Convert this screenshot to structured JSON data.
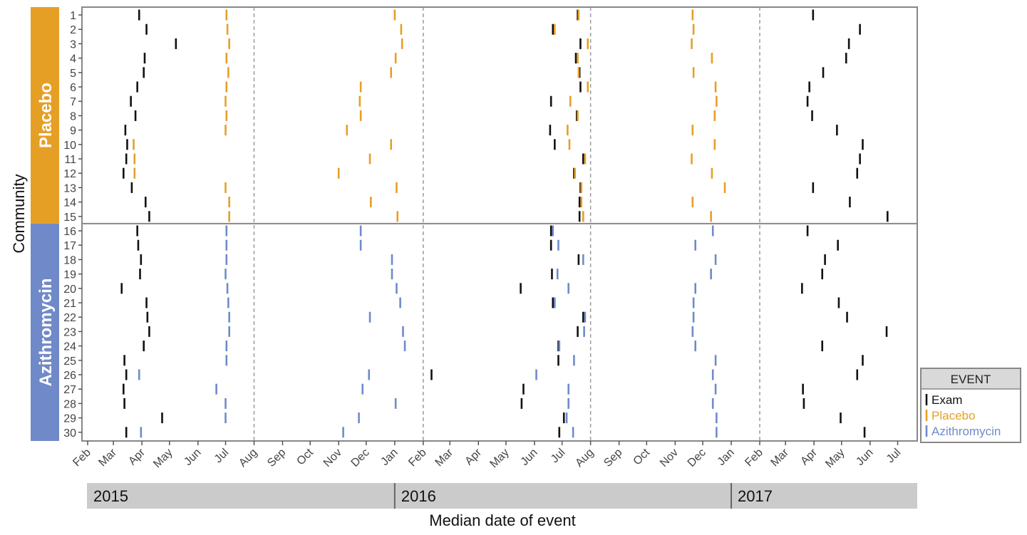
{
  "chart_data": {
    "type": "timeline",
    "xlabel": "Median date of event",
    "ylabel": "Community",
    "x_range": [
      "2015-02-01",
      "2017-07-15"
    ],
    "x_ticks": [
      "Feb",
      "Mar",
      "Apr",
      "May",
      "Jun",
      "Jul",
      "Aug",
      "Sep",
      "Oct",
      "Nov",
      "Dec",
      "Jan",
      "Feb",
      "Mar",
      "Apr",
      "May",
      "Jun",
      "Jul",
      "Aug",
      "Sep",
      "Oct",
      "Nov",
      "Dec",
      "Jan",
      "Feb",
      "Mar",
      "Apr",
      "May",
      "Jun",
      "Jul"
    ],
    "x_tick_dates": [
      "2015-02-01",
      "2015-03-01",
      "2015-04-01",
      "2015-05-01",
      "2015-06-01",
      "2015-07-01",
      "2015-08-01",
      "2015-09-01",
      "2015-10-01",
      "2015-11-01",
      "2015-12-01",
      "2016-01-01",
      "2016-02-01",
      "2016-03-01",
      "2016-04-01",
      "2016-05-01",
      "2016-06-01",
      "2016-07-01",
      "2016-08-01",
      "2016-09-01",
      "2016-10-01",
      "2016-11-01",
      "2016-12-01",
      "2017-01-01",
      "2017-02-01",
      "2017-03-01",
      "2017-04-01",
      "2017-05-01",
      "2017-06-01",
      "2017-07-01"
    ],
    "dashed_lines": [
      "2015-08-01",
      "2016-02-01",
      "2016-08-01",
      "2017-02-01"
    ],
    "years": [
      {
        "label": "2015",
        "start": "2015-02-01",
        "end": "2016-01-01"
      },
      {
        "label": "2016",
        "start": "2016-01-01",
        "end": "2017-01-01"
      },
      {
        "label": "2017",
        "start": "2017-01-01",
        "end": "2017-07-15"
      }
    ],
    "panels": [
      {
        "label": "Placebo",
        "color": "#E69F25",
        "communities": [
          1,
          2,
          3,
          4,
          5,
          6,
          7,
          8,
          9,
          10,
          11,
          12,
          13,
          14,
          15
        ]
      },
      {
        "label": "Azithromycin",
        "color": "#7089C8",
        "communities": [
          16,
          17,
          18,
          19,
          20,
          21,
          22,
          23,
          24,
          25,
          26,
          27,
          28,
          29,
          30
        ]
      }
    ],
    "legend": {
      "title": "EVENT",
      "position": "bottom-right",
      "items": [
        {
          "label": "Exam",
          "color": "#111111"
        },
        {
          "label": "Placebo",
          "color": "#E69F25"
        },
        {
          "label": "Azithromycin",
          "color": "#6E8BC9"
        }
      ]
    },
    "events": [
      {
        "community": 1,
        "type": "Exam",
        "dates": [
          "2015-03-29",
          "2016-07-18",
          "2017-03-31"
        ]
      },
      {
        "community": 1,
        "type": "Placebo",
        "dates": [
          "2015-07-02",
          "2016-01-01",
          "2016-07-19",
          "2016-11-20"
        ]
      },
      {
        "community": 2,
        "type": "Exam",
        "dates": [
          "2015-04-06",
          "2016-06-21",
          "2017-05-21"
        ]
      },
      {
        "community": 2,
        "type": "Placebo",
        "dates": [
          "2015-07-03",
          "2016-01-08",
          "2016-06-23",
          "2016-11-21"
        ]
      },
      {
        "community": 3,
        "type": "Exam",
        "dates": [
          "2015-05-08",
          "2016-07-21",
          "2017-05-09"
        ]
      },
      {
        "community": 3,
        "type": "Placebo",
        "dates": [
          "2015-07-05",
          "2016-01-09",
          "2016-07-29",
          "2016-11-19"
        ]
      },
      {
        "community": 4,
        "type": "Exam",
        "dates": [
          "2015-04-04",
          "2016-07-16",
          "2017-05-06"
        ]
      },
      {
        "community": 4,
        "type": "Placebo",
        "dates": [
          "2015-07-02",
          "2016-01-02",
          "2016-07-18",
          "2016-12-11"
        ]
      },
      {
        "community": 5,
        "type": "Exam",
        "dates": [
          "2015-04-03",
          "2016-07-20",
          "2017-04-11"
        ]
      },
      {
        "community": 5,
        "type": "Placebo",
        "dates": [
          "2015-07-04",
          "2015-12-28",
          "2016-07-19",
          "2016-11-21"
        ]
      },
      {
        "community": 6,
        "type": "Exam",
        "dates": [
          "2015-03-27",
          "2016-07-21",
          "2017-03-27"
        ]
      },
      {
        "community": 6,
        "type": "Placebo",
        "dates": [
          "2015-07-02",
          "2015-11-25",
          "2016-07-29",
          "2016-12-15"
        ]
      },
      {
        "community": 7,
        "type": "Exam",
        "dates": [
          "2015-03-20",
          "2016-06-19",
          "2017-03-25"
        ]
      },
      {
        "community": 7,
        "type": "Placebo",
        "dates": [
          "2015-07-01",
          "2015-11-24",
          "2016-07-10",
          "2016-12-16"
        ]
      },
      {
        "community": 8,
        "type": "Exam",
        "dates": [
          "2015-03-25",
          "2016-07-17",
          "2017-03-30"
        ]
      },
      {
        "community": 8,
        "type": "Placebo",
        "dates": [
          "2015-07-02",
          "2015-11-25",
          "2016-07-18",
          "2016-12-14"
        ]
      },
      {
        "community": 9,
        "type": "Exam",
        "dates": [
          "2015-03-14",
          "2016-06-18",
          "2017-04-26"
        ]
      },
      {
        "community": 9,
        "type": "Placebo",
        "dates": [
          "2015-07-01",
          "2015-11-10",
          "2016-07-07",
          "2016-11-20"
        ]
      },
      {
        "community": 10,
        "type": "Exam",
        "dates": [
          "2015-03-16",
          "2016-06-23",
          "2017-05-24"
        ]
      },
      {
        "community": 10,
        "type": "Placebo",
        "dates": [
          "2015-03-23",
          "2015-12-28",
          "2016-07-09",
          "2016-12-14"
        ]
      },
      {
        "community": 11,
        "type": "Exam",
        "dates": [
          "2015-03-15",
          "2016-07-24",
          "2017-05-21"
        ]
      },
      {
        "community": 11,
        "type": "Placebo",
        "dates": [
          "2015-03-24",
          "2015-12-05",
          "2016-07-26",
          "2016-11-19"
        ]
      },
      {
        "community": 12,
        "type": "Exam",
        "dates": [
          "2015-03-12",
          "2016-07-14",
          "2017-05-18"
        ]
      },
      {
        "community": 12,
        "type": "Placebo",
        "dates": [
          "2015-03-24",
          "2015-11-01",
          "2016-07-15",
          "2016-12-11"
        ]
      },
      {
        "community": 13,
        "type": "Exam",
        "dates": [
          "2015-03-21",
          "2016-07-21",
          "2017-03-31"
        ]
      },
      {
        "community": 13,
        "type": "Placebo",
        "dates": [
          "2015-07-01",
          "2016-01-03",
          "2016-07-22",
          "2016-12-25"
        ]
      },
      {
        "community": 14,
        "type": "Exam",
        "dates": [
          "2015-04-05",
          "2016-07-20",
          "2017-05-10"
        ]
      },
      {
        "community": 14,
        "type": "Placebo",
        "dates": [
          "2015-07-05",
          "2015-12-06",
          "2016-07-22",
          "2016-11-20"
        ]
      },
      {
        "community": 15,
        "type": "Exam",
        "dates": [
          "2015-04-09",
          "2016-07-20",
          "2017-06-20"
        ]
      },
      {
        "community": 15,
        "type": "Placebo",
        "dates": [
          "2015-07-05",
          "2016-01-04",
          "2016-07-24",
          "2016-12-10"
        ]
      },
      {
        "community": 16,
        "type": "Exam",
        "dates": [
          "2015-03-27",
          "2016-06-19",
          "2017-03-25"
        ]
      },
      {
        "community": 16,
        "type": "Azithromycin",
        "dates": [
          "2015-07-02",
          "2015-11-25",
          "2016-06-21",
          "2016-12-12"
        ]
      },
      {
        "community": 17,
        "type": "Exam",
        "dates": [
          "2015-03-28",
          "2016-06-19",
          "2017-04-27"
        ]
      },
      {
        "community": 17,
        "type": "Azithromycin",
        "dates": [
          "2015-07-02",
          "2015-11-25",
          "2016-06-27",
          "2016-11-23"
        ]
      },
      {
        "community": 18,
        "type": "Exam",
        "dates": [
          "2015-03-31",
          "2016-07-19",
          "2017-04-13"
        ]
      },
      {
        "community": 18,
        "type": "Azithromycin",
        "dates": [
          "2015-07-02",
          "2015-12-29",
          "2016-07-24",
          "2016-12-15"
        ]
      },
      {
        "community": 19,
        "type": "Exam",
        "dates": [
          "2015-03-30",
          "2016-06-20",
          "2017-04-10"
        ]
      },
      {
        "community": 19,
        "type": "Azithromycin",
        "dates": [
          "2015-07-01",
          "2015-12-29",
          "2016-06-26",
          "2016-12-10"
        ]
      },
      {
        "community": 20,
        "type": "Exam",
        "dates": [
          "2015-03-10",
          "2016-05-17",
          "2017-03-19"
        ]
      },
      {
        "community": 20,
        "type": "Azithromycin",
        "dates": [
          "2015-07-03",
          "2016-01-03",
          "2016-07-08",
          "2016-11-23"
        ]
      },
      {
        "community": 21,
        "type": "Exam",
        "dates": [
          "2015-04-06",
          "2016-06-21",
          "2017-04-28"
        ]
      },
      {
        "community": 21,
        "type": "Azithromycin",
        "dates": [
          "2015-07-04",
          "2016-01-07",
          "2016-06-23",
          "2016-11-21"
        ]
      },
      {
        "community": 22,
        "type": "Exam",
        "dates": [
          "2015-04-07",
          "2016-07-24",
          "2017-05-07"
        ]
      },
      {
        "community": 22,
        "type": "Azithromycin",
        "dates": [
          "2015-07-05",
          "2015-12-05",
          "2016-07-26",
          "2016-11-21"
        ]
      },
      {
        "community": 23,
        "type": "Exam",
        "dates": [
          "2015-04-09",
          "2016-07-18",
          "2017-06-19"
        ]
      },
      {
        "community": 23,
        "type": "Azithromycin",
        "dates": [
          "2015-07-05",
          "2016-01-10",
          "2016-07-25",
          "2016-11-20"
        ]
      },
      {
        "community": 24,
        "type": "Exam",
        "dates": [
          "2015-04-03",
          "2016-06-27",
          "2017-04-10"
        ]
      },
      {
        "community": 24,
        "type": "Azithromycin",
        "dates": [
          "2015-07-02",
          "2016-01-12",
          "2016-06-28",
          "2016-11-23"
        ]
      },
      {
        "community": 25,
        "type": "Exam",
        "dates": [
          "2015-03-13",
          "2016-06-27",
          "2017-05-24"
        ]
      },
      {
        "community": 25,
        "type": "Azithromycin",
        "dates": [
          "2015-07-02",
          "2016-07-14",
          "2016-12-15"
        ]
      },
      {
        "community": 26,
        "type": "Exam",
        "dates": [
          "2015-03-15",
          "2016-02-10",
          "2017-05-18"
        ]
      },
      {
        "community": 26,
        "type": "Azithromycin",
        "dates": [
          "2015-03-29",
          "2015-12-04",
          "2016-06-03",
          "2016-12-12"
        ]
      },
      {
        "community": 27,
        "type": "Exam",
        "dates": [
          "2015-03-12",
          "2016-05-20",
          "2017-03-20"
        ]
      },
      {
        "community": 27,
        "type": "Azithromycin",
        "dates": [
          "2015-06-21",
          "2015-11-27",
          "2016-07-08",
          "2016-12-15"
        ]
      },
      {
        "community": 28,
        "type": "Exam",
        "dates": [
          "2015-03-13",
          "2016-05-18",
          "2017-03-21"
        ]
      },
      {
        "community": 28,
        "type": "Azithromycin",
        "dates": [
          "2015-07-01",
          "2016-01-02",
          "2016-07-08",
          "2016-12-12"
        ]
      },
      {
        "community": 29,
        "type": "Exam",
        "dates": [
          "2015-04-23",
          "2016-07-03",
          "2017-04-30"
        ]
      },
      {
        "community": 29,
        "type": "Azithromycin",
        "dates": [
          "2015-07-01",
          "2015-11-23",
          "2016-07-06",
          "2016-12-16"
        ]
      },
      {
        "community": 30,
        "type": "Exam",
        "dates": [
          "2015-03-15",
          "2016-06-28",
          "2017-05-26"
        ]
      },
      {
        "community": 30,
        "type": "Azithromycin",
        "dates": [
          "2015-03-31",
          "2015-11-06",
          "2016-07-13",
          "2016-12-16"
        ]
      }
    ]
  }
}
